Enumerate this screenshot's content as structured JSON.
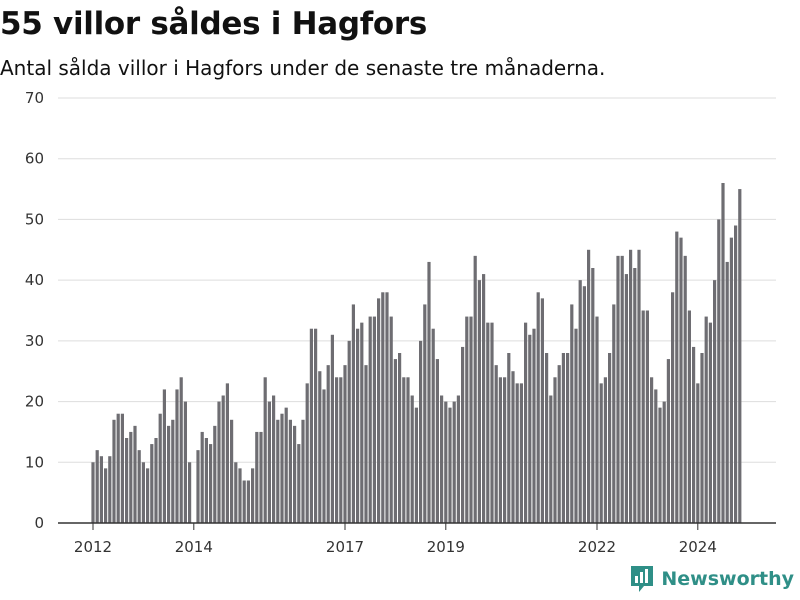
{
  "page": {
    "title": "55 villor såldes i Hagfors",
    "subtitle": "Antal sålda villor i Hagfors under de senaste tre månaderna.",
    "brand": "Newsworthy"
  },
  "chart_data": {
    "type": "bar",
    "title": "55 villor såldes i Hagfors",
    "subtitle": "Antal sålda villor i Hagfors under de senaste tre månaderna.",
    "xlabel": "",
    "ylabel": "",
    "ylim": [
      0,
      70
    ],
    "y_ticks": [
      "0",
      "10",
      "20",
      "30",
      "40",
      "50",
      "60",
      "70"
    ],
    "x_ticks": [
      {
        "label": "2012",
        "index": 0
      },
      {
        "label": "2014",
        "index": 24
      },
      {
        "label": "2017",
        "index": 60
      },
      {
        "label": "2019",
        "index": 84
      },
      {
        "label": "2022",
        "index": 120
      },
      {
        "label": "2024",
        "index": 144
      }
    ],
    "grid": true,
    "legend": "none",
    "colors": {
      "bar": "#6e6d72",
      "highlight": "#1d9a92",
      "grid": "#dddddd",
      "axis": "#333333"
    },
    "highlight_index": 155,
    "annotation": "55",
    "values": [
      10,
      12,
      11,
      9,
      11,
      17,
      18,
      18,
      14,
      15,
      16,
      12,
      10,
      9,
      13,
      14,
      18,
      22,
      16,
      17,
      22,
      24,
      20,
      10,
      0,
      12,
      15,
      14,
      13,
      16,
      20,
      21,
      23,
      17,
      10,
      9,
      7,
      7,
      9,
      15,
      15,
      24,
      20,
      21,
      17,
      18,
      19,
      17,
      16,
      13,
      17,
      23,
      32,
      32,
      25,
      22,
      26,
      31,
      24,
      24,
      26,
      30,
      36,
      32,
      33,
      26,
      34,
      34,
      37,
      38,
      38,
      34,
      27,
      28,
      24,
      24,
      21,
      19,
      30,
      36,
      43,
      32,
      27,
      21,
      20,
      19,
      20,
      21,
      29,
      34,
      34,
      44,
      40,
      41,
      33,
      33,
      26,
      24,
      24,
      28,
      25,
      23,
      23,
      33,
      31,
      32,
      38,
      37,
      28,
      21,
      24,
      26,
      28,
      28,
      36,
      32,
      40,
      39,
      45,
      42,
      34,
      23,
      24,
      28,
      36,
      44,
      44,
      41,
      45,
      42,
      45,
      35,
      35,
      24,
      22,
      19,
      20,
      27,
      38,
      48,
      47,
      44,
      35,
      29,
      23,
      28,
      34,
      33,
      40,
      50,
      56,
      43,
      47,
      49,
      55
    ]
  }
}
